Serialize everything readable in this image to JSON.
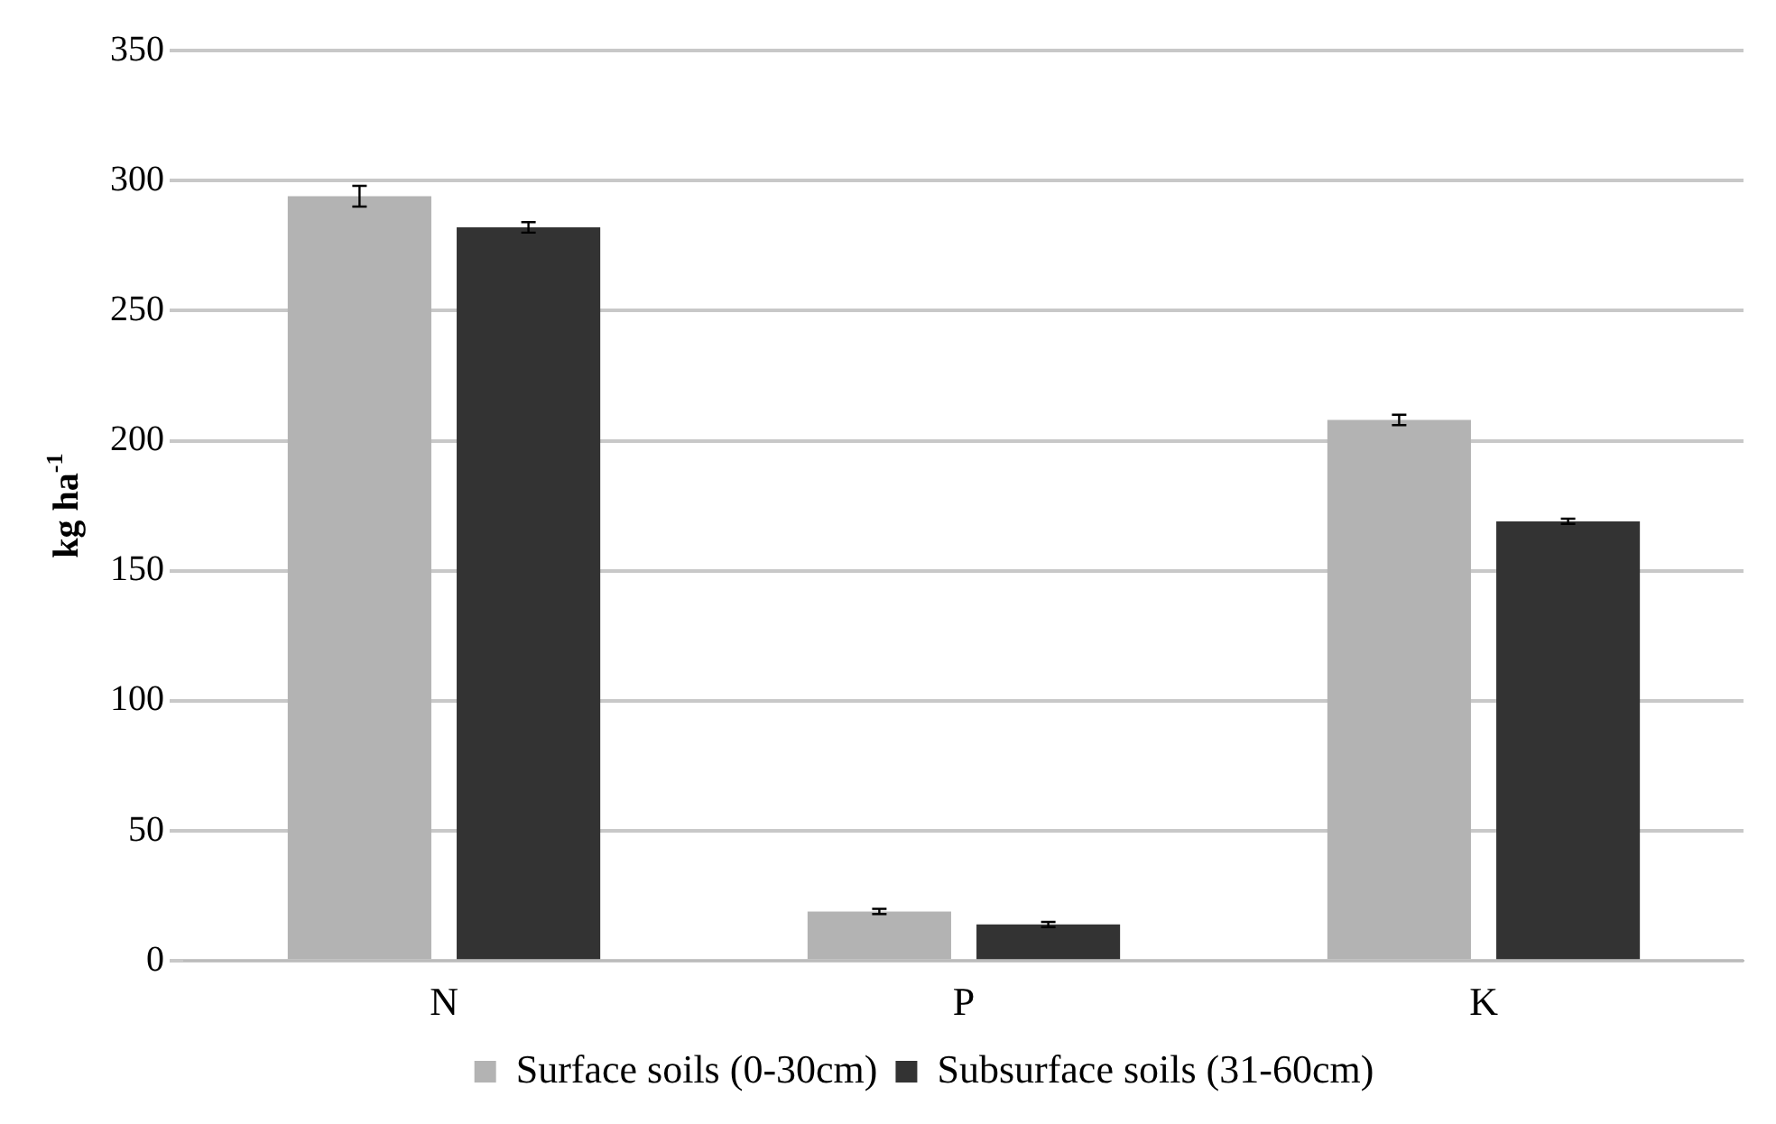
{
  "chart_data": {
    "type": "bar",
    "ylabel": "kg ha$^{-1}$",
    "categories": [
      "N",
      "P",
      "K"
    ],
    "series": [
      {
        "name": "Surface soils (0-30cm)",
        "color": "#b3b3b3",
        "values": [
          294,
          19,
          208
        ],
        "errors": [
          4,
          1,
          2
        ]
      },
      {
        "name": "Subsurface soils (31-60cm)",
        "color": "#333333",
        "values": [
          282,
          14,
          169
        ],
        "errors": [
          2,
          1,
          1
        ]
      }
    ],
    "ylim": [
      0,
      350
    ],
    "yticks": [
      0,
      50,
      100,
      150,
      200,
      250,
      300,
      350
    ],
    "grid": "y",
    "legend": "bottom"
  }
}
